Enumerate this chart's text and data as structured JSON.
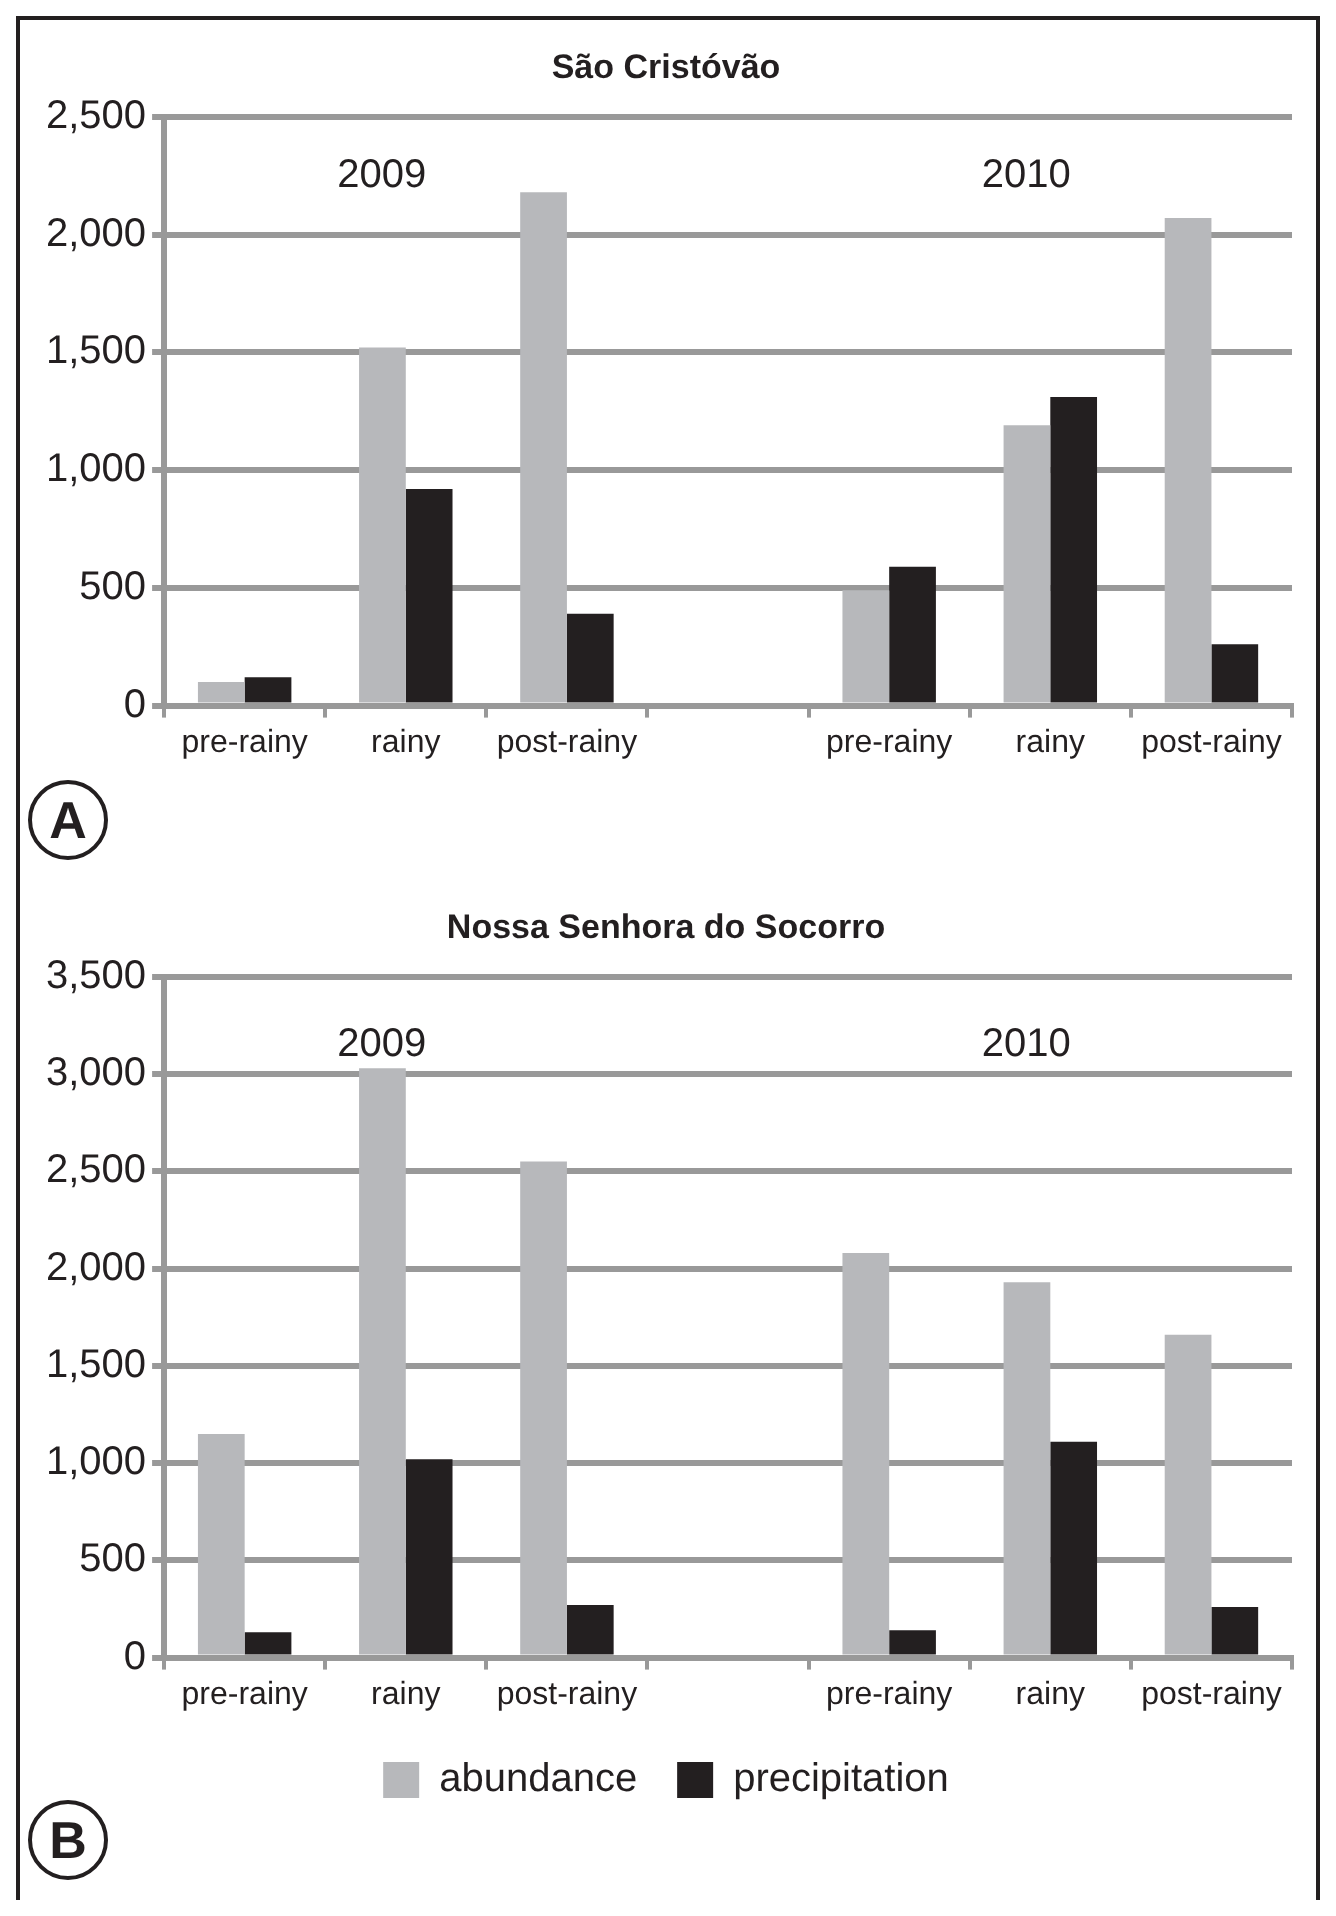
{
  "chart_data": [
    {
      "type": "bar",
      "title": "São Cristóvão",
      "categories": [
        "pre-rainy",
        "rainy",
        "post-rainy",
        null,
        "pre-rainy",
        "rainy",
        "post-rainy"
      ],
      "series": [
        {
          "color": "#b7b8bb",
          "values": [
            100,
            1520,
            2180,
            null,
            490,
            1190,
            2070
          ]
        },
        {
          "color": "#231f20",
          "values": [
            120,
            920,
            390,
            null,
            590,
            1310,
            260
          ]
        }
      ],
      "ylim": [
        0,
        2500
      ],
      "yticks": [
        {
          "value": 0,
          "label": "0"
        },
        {
          "value": 500,
          "label": "500"
        },
        {
          "value": 1000,
          "label": "1,000"
        },
        {
          "value": 1500,
          "label": "1,500"
        },
        {
          "value": 2000,
          "label": "2,000"
        },
        {
          "value": 2500,
          "label": "2,500"
        }
      ],
      "grid": "y",
      "legend": false,
      "annotations": [
        "2009",
        "2010",
        "A"
      ]
    },
    {
      "type": "bar",
      "title": "Nossa Senhora do Socorro",
      "categories": [
        "pre-rainy",
        "rainy",
        "post-rainy",
        null,
        "pre-rainy",
        "rainy",
        "post-rainy"
      ],
      "series": [
        {
          "name": "abundance",
          "color": "#b7b8bb",
          "values": [
            1150,
            3030,
            2550,
            null,
            2080,
            1930,
            1660
          ]
        },
        {
          "name": "precipitation",
          "color": "#231f20",
          "values": [
            130,
            1020,
            270,
            null,
            140,
            1110,
            260
          ]
        }
      ],
      "ylim": [
        0,
        3500
      ],
      "yticks": [
        {
          "value": 0,
          "label": "0"
        },
        {
          "value": 500,
          "label": "500"
        },
        {
          "value": 1000,
          "label": "1,000"
        },
        {
          "value": 1500,
          "label": "1,500"
        },
        {
          "value": 2000,
          "label": "2,000"
        },
        {
          "value": 2500,
          "label": "2,500"
        },
        {
          "value": 3000,
          "label": "3,000"
        },
        {
          "value": 3500,
          "label": "3,500"
        }
      ],
      "grid": "y",
      "legend": "bottom",
      "annotations": [
        "2009",
        "2010",
        "B"
      ]
    }
  ]
}
